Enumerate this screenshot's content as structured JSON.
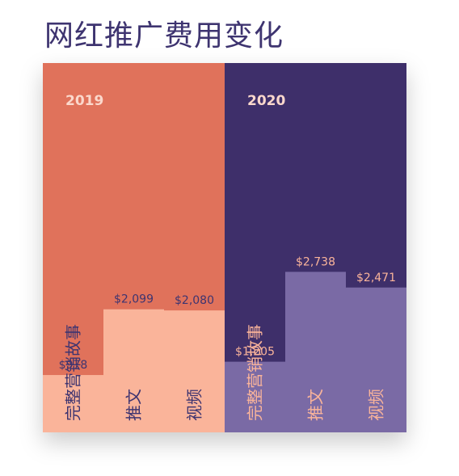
{
  "title": "网红推广费用变化",
  "colors": {
    "panel_2019": "#e0725b",
    "bar_2019": "#fab49a",
    "panel_2020": "#3e2f6a",
    "bar_2020": "#7a6aa5",
    "label_2019": "#fbd8cc",
    "value_2019": "#3e3470",
    "cat_2019": "#3e3470",
    "label_2020": "#fbd8cc",
    "value_2020": "#fab49a",
    "cat_2020": "#fab49a"
  },
  "chart_data": {
    "type": "bar",
    "title": "网红推广费用变化",
    "categories": [
      "完整营销故事",
      "推文",
      "视频"
    ],
    "series": [
      {
        "name": "2019",
        "values": [
          978,
          2099,
          2080
        ],
        "labels": [
          "$978",
          "$2,099",
          "$2,080"
        ]
      },
      {
        "name": "2020",
        "values": [
          1205,
          2738,
          2471
        ],
        "labels": [
          "$1,205",
          "$2,738",
          "$2,471"
        ]
      }
    ],
    "ylim": [
      0,
      6300
    ],
    "grid": false,
    "legend": "none"
  }
}
